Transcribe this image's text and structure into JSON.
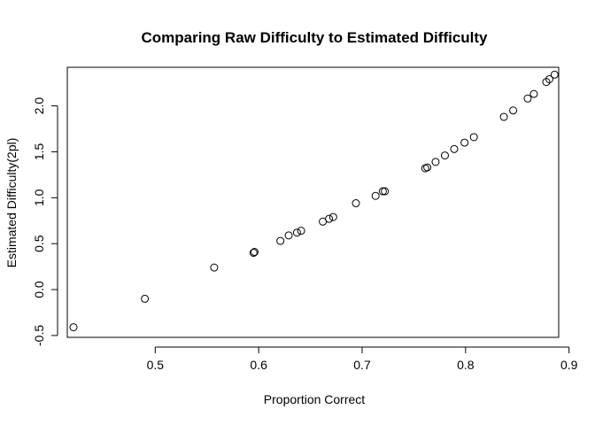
{
  "chart_data": {
    "type": "scatter",
    "title": "Comparing Raw Difficulty to Estimated Difficulty",
    "xlabel": "Proportion Correct",
    "ylabel": "Estimated Difficulty(2pl)",
    "xlim": [
      0.415,
      0.89
    ],
    "ylim": [
      -0.52,
      2.42
    ],
    "x_ticks": [
      0.5,
      0.6,
      0.7,
      0.8,
      0.9
    ],
    "x_tick_labels": [
      "0.5",
      "0.6",
      "0.7",
      "0.8",
      "0.9"
    ],
    "y_ticks": [
      -0.5,
      0.0,
      0.5,
      1.0,
      1.5,
      2.0
    ],
    "y_tick_labels": [
      "-0.5",
      "0.0",
      "0.5",
      "1.0",
      "1.5",
      "2.0"
    ],
    "grid": false,
    "marker": "open-circle",
    "points": [
      {
        "x": 0.421,
        "y": -0.41
      },
      {
        "x": 0.49,
        "y": -0.1
      },
      {
        "x": 0.557,
        "y": 0.24
      },
      {
        "x": 0.595,
        "y": 0.4
      },
      {
        "x": 0.596,
        "y": 0.41
      },
      {
        "x": 0.621,
        "y": 0.53
      },
      {
        "x": 0.629,
        "y": 0.59
      },
      {
        "x": 0.637,
        "y": 0.62
      },
      {
        "x": 0.641,
        "y": 0.64
      },
      {
        "x": 0.662,
        "y": 0.74
      },
      {
        "x": 0.668,
        "y": 0.77
      },
      {
        "x": 0.672,
        "y": 0.79
      },
      {
        "x": 0.694,
        "y": 0.94
      },
      {
        "x": 0.713,
        "y": 1.02
      },
      {
        "x": 0.72,
        "y": 1.07
      },
      {
        "x": 0.722,
        "y": 1.07
      },
      {
        "x": 0.761,
        "y": 1.32
      },
      {
        "x": 0.763,
        "y": 1.33
      },
      {
        "x": 0.771,
        "y": 1.39
      },
      {
        "x": 0.78,
        "y": 1.46
      },
      {
        "x": 0.789,
        "y": 1.53
      },
      {
        "x": 0.799,
        "y": 1.6
      },
      {
        "x": 0.808,
        "y": 1.66
      },
      {
        "x": 0.837,
        "y": 1.88
      },
      {
        "x": 0.846,
        "y": 1.95
      },
      {
        "x": 0.86,
        "y": 2.08
      },
      {
        "x": 0.866,
        "y": 2.13
      },
      {
        "x": 0.878,
        "y": 2.26
      },
      {
        "x": 0.881,
        "y": 2.29
      },
      {
        "x": 0.886,
        "y": 2.34
      }
    ]
  }
}
